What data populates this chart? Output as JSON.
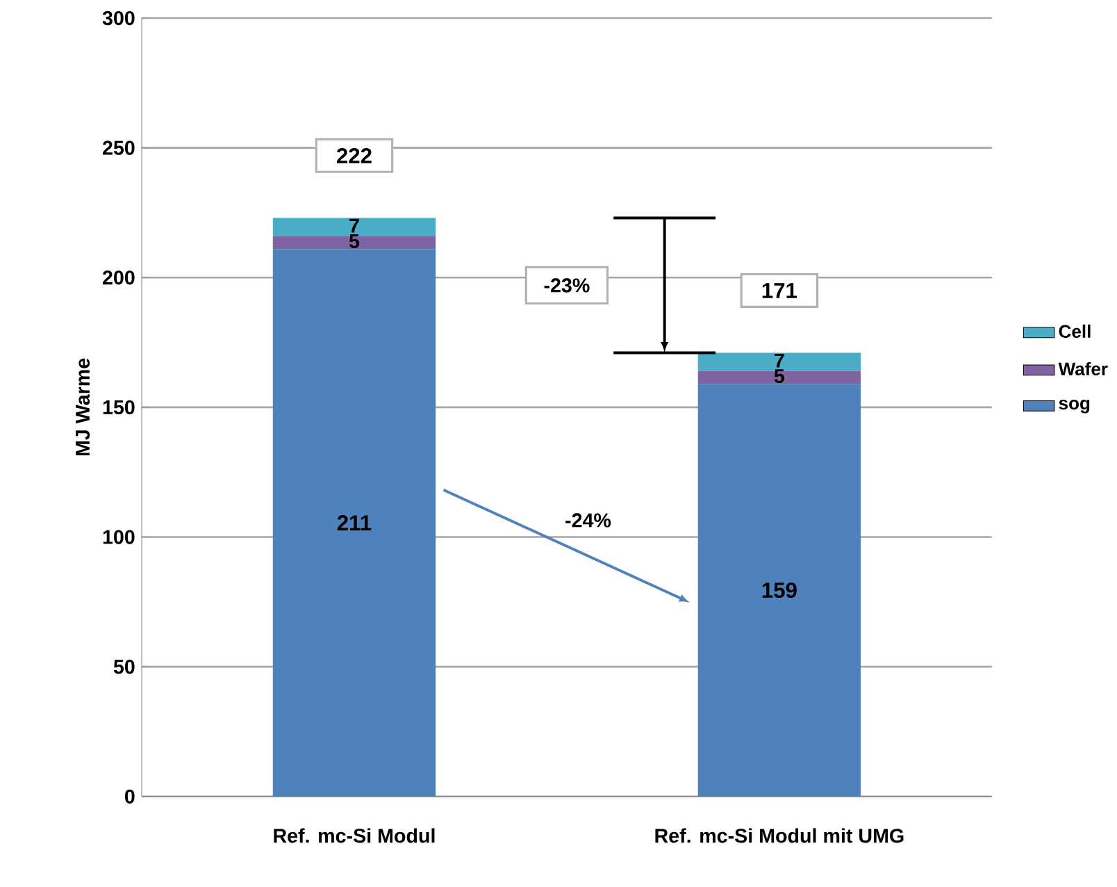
{
  "chart_data": {
    "type": "bar",
    "stacked": true,
    "ylabel": "MJ Warme",
    "categories": [
      "Ref. mc-Si Modul",
      "Ref. mc-Si Modul mit UMG"
    ],
    "series": [
      {
        "name": "sog",
        "color": "#4f81bd",
        "values": [
          211,
          159
        ]
      },
      {
        "name": "Wafer",
        "color": "#8064a2",
        "values": [
          5,
          5
        ]
      },
      {
        "name": "Cell",
        "color": "#4bacc6",
        "values": [
          7,
          7
        ]
      }
    ],
    "ylim": [
      0,
      300
    ],
    "yticks": [
      0,
      50,
      100,
      150,
      200,
      250,
      300
    ],
    "grid": "y",
    "legend": "right",
    "data_labels": true,
    "totals": [
      "222",
      "171"
    ],
    "annotations": [
      "-23%",
      "-24%"
    ]
  }
}
